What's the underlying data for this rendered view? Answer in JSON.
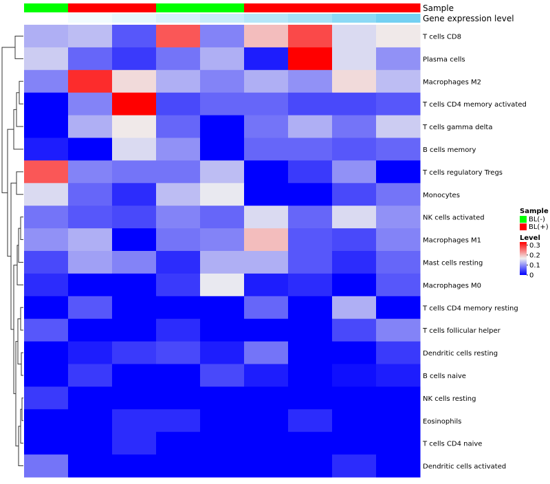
{
  "chart_data": {
    "type": "heatmap",
    "title": "",
    "annotation_tracks": [
      {
        "name": "Sample",
        "values": [
          "BL(-)",
          "BL(+)",
          "BL(+)",
          "BL(-)",
          "BL(-)",
          "BL(+)",
          "BL(+)",
          "BL(+)",
          "BL(+)"
        ]
      },
      {
        "name": "Gene expression level",
        "values": [
          0.0,
          0.08,
          0.15,
          0.25,
          0.35,
          0.45,
          0.55,
          0.7,
          0.85
        ]
      }
    ],
    "rows": [
      "T cells CD8",
      "Plasma cells",
      "Macrophages M2",
      "T cells CD4 memory activated",
      "T cells gamma delta",
      "B cells memory",
      "T cells regulatory  Tregs",
      "Monocytes",
      "NK cells activated",
      "Macrophages M1",
      "Mast cells resting",
      "Macrophages M0",
      "T cells CD4 memory resting",
      "T cells follicular helper",
      "Dendritic cells resting",
      "B cells naive",
      "NK cells resting",
      "Eosinophils",
      "T cells CD4 naive",
      "Dendritic cells activated"
    ],
    "values": [
      [
        0.12,
        0.13,
        0.06,
        0.27,
        0.09,
        0.2,
        0.28,
        0.15,
        0.17
      ],
      [
        0.14,
        0.07,
        0.04,
        0.08,
        0.12,
        0.02,
        0.33,
        0.15,
        0.1
      ],
      [
        0.09,
        0.3,
        0.18,
        0.12,
        0.09,
        0.12,
        0.1,
        0.18,
        0.13
      ],
      [
        0.0,
        0.09,
        0.33,
        0.05,
        0.07,
        0.07,
        0.05,
        0.05,
        0.06
      ],
      [
        0.0,
        0.12,
        0.17,
        0.07,
        0.0,
        0.08,
        0.12,
        0.08,
        0.14
      ],
      [
        0.02,
        0.0,
        0.15,
        0.1,
        0.0,
        0.07,
        0.07,
        0.06,
        0.07
      ],
      [
        0.27,
        0.09,
        0.08,
        0.08,
        0.13,
        0.0,
        0.04,
        0.1,
        0.0
      ],
      [
        0.15,
        0.07,
        0.03,
        0.13,
        0.16,
        0.0,
        0.0,
        0.05,
        0.08
      ],
      [
        0.08,
        0.06,
        0.05,
        0.09,
        0.07,
        0.15,
        0.07,
        0.15,
        0.1
      ],
      [
        0.1,
        0.12,
        0.0,
        0.08,
        0.09,
        0.2,
        0.06,
        0.05,
        0.09
      ],
      [
        0.05,
        0.11,
        0.09,
        0.03,
        0.12,
        0.12,
        0.06,
        0.03,
        0.07
      ],
      [
        0.03,
        0.0,
        0.0,
        0.04,
        0.16,
        0.02,
        0.03,
        0.0,
        0.06
      ],
      [
        0.0,
        0.06,
        0.0,
        0.0,
        0.0,
        0.07,
        0.0,
        0.12,
        0.0
      ],
      [
        0.06,
        0.0,
        0.0,
        0.03,
        0.0,
        0.0,
        0.0,
        0.05,
        0.09
      ],
      [
        0.0,
        0.02,
        0.04,
        0.05,
        0.02,
        0.08,
        0.0,
        0.0,
        0.04
      ],
      [
        0.0,
        0.04,
        0.0,
        0.0,
        0.05,
        0.02,
        0.0,
        0.01,
        0.02
      ],
      [
        0.04,
        0.0,
        0.0,
        0.0,
        0.0,
        0.0,
        0.0,
        0.0,
        0.0
      ],
      [
        0.0,
        0.0,
        0.03,
        0.03,
        0.0,
        0.0,
        0.03,
        0.0,
        0.0
      ],
      [
        0.0,
        0.0,
        0.03,
        0.0,
        0.0,
        0.0,
        0.0,
        0.0,
        0.0
      ],
      [
        0.08,
        0.0,
        0.0,
        0.0,
        0.0,
        0.0,
        0.0,
        0.03,
        0.0
      ]
    ],
    "color_scale": {
      "min": 0,
      "max": 0.33,
      "colors": [
        "#0000ff",
        "#f0f0f0",
        "#ff0000"
      ]
    },
    "legend": {
      "sample_title": "Sample",
      "sample_entries": [
        {
          "label": "BL(-)",
          "color": "#00ff00"
        },
        {
          "label": "BL(+)",
          "color": "#ff0000"
        }
      ],
      "level_title": "Level",
      "level_ticks": [
        "0.3",
        "0.2",
        "0.1",
        "0"
      ],
      "level_tick_values": [
        0.3,
        0.2,
        0.1,
        0
      ],
      "placement": "right"
    },
    "annotation_colors": {
      "expr_low": "#ffffff",
      "expr_high": "#5bc8f0"
    },
    "dendrogram": "rows"
  }
}
